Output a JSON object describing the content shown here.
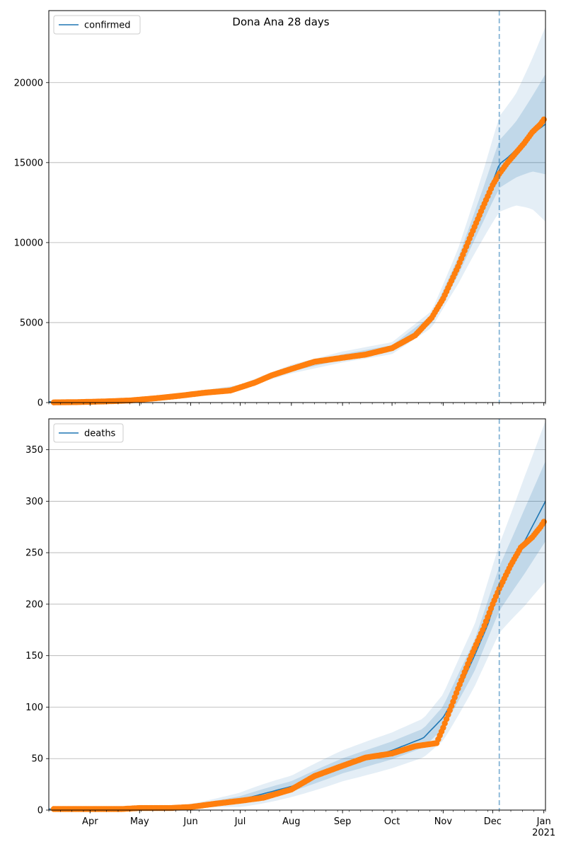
{
  "title": "Dona Ana 28 days",
  "chart_data": [
    {
      "type": "line",
      "panel": "confirmed",
      "legend": {
        "label": "confirmed",
        "placement": "upper-left"
      },
      "colors": {
        "model": "#1f77b4",
        "observed": "#ff7f0e",
        "band": "#1f77b4",
        "grid": "#b0b0b0"
      },
      "grid": "y",
      "xlim": [
        "2020-03-07",
        "2021-01-02"
      ],
      "ylim": [
        0,
        24500
      ],
      "yticks": [
        "0",
        "5000",
        "10000",
        "15000",
        "20000"
      ],
      "forecast_start": "2020-12-05",
      "model_median": {
        "x": [
          "2020-03-07",
          "2020-04-01",
          "2020-05-01",
          "2020-06-01",
          "2020-07-01",
          "2020-07-15",
          "2020-08-01",
          "2020-08-15",
          "2020-09-01",
          "2020-09-15",
          "2020-10-01",
          "2020-10-15",
          "2020-10-25",
          "2020-11-01",
          "2020-11-10",
          "2020-11-20",
          "2020-11-25",
          "2020-12-01",
          "2020-12-05",
          "2020-12-10",
          "2020-12-15",
          "2020-12-20",
          "2020-12-25",
          "2021-01-02"
        ],
        "y": [
          50,
          90,
          200,
          480,
          1000,
          1500,
          2100,
          2550,
          2850,
          3050,
          3400,
          4200,
          5200,
          6500,
          8500,
          11000,
          12300,
          13800,
          14900,
          15300,
          15800,
          16300,
          16800,
          17400
        ]
      },
      "bands": {
        "x": [
          "2020-03-07",
          "2020-05-01",
          "2020-07-01",
          "2020-08-01",
          "2020-09-01",
          "2020-10-01",
          "2020-10-25",
          "2020-11-10",
          "2020-11-25",
          "2020-12-05",
          "2020-12-15",
          "2020-12-25",
          "2021-01-02"
        ],
        "y": [
          50,
          200,
          1000,
          2100,
          2850,
          3400,
          5200,
          8500,
          12300,
          14900,
          15800,
          16800,
          17400
        ],
        "outer_spread": [
          0,
          0.05,
          0.12,
          0.13,
          0.12,
          0.11,
          0.1,
          0.13,
          0.17,
          0.2,
          0.22,
          0.28,
          0.35
        ],
        "inner_spread": [
          0,
          0.025,
          0.06,
          0.065,
          0.06,
          0.055,
          0.05,
          0.065,
          0.085,
          0.1,
          0.11,
          0.14,
          0.18
        ]
      },
      "observed": {
        "x": [
          "2020-03-10",
          "2020-03-25",
          "2020-04-10",
          "2020-04-25",
          "2020-05-10",
          "2020-05-25",
          "2020-06-10",
          "2020-06-25",
          "2020-07-10",
          "2020-07-20",
          "2020-08-01",
          "2020-08-15",
          "2020-09-01",
          "2020-09-15",
          "2020-10-01",
          "2020-10-15",
          "2020-10-25",
          "2020-11-01",
          "2020-11-10",
          "2020-11-18",
          "2020-11-25",
          "2020-12-01",
          "2020-12-05",
          "2020-12-10",
          "2020-12-15",
          "2020-12-20",
          "2020-12-25",
          "2020-12-30",
          "2021-01-01"
        ],
        "y": [
          10,
          30,
          70,
          130,
          260,
          420,
          620,
          750,
          1250,
          1700,
          2100,
          2550,
          2800,
          3000,
          3400,
          4200,
          5300,
          6500,
          8500,
          10500,
          12200,
          13600,
          14300,
          15000,
          15600,
          16200,
          16900,
          17400,
          17700
        ]
      }
    },
    {
      "type": "line",
      "panel": "deaths",
      "legend": {
        "label": "deaths",
        "placement": "upper-left"
      },
      "colors": {
        "model": "#1f77b4",
        "observed": "#ff7f0e",
        "band": "#1f77b4",
        "grid": "#b0b0b0"
      },
      "grid": "y",
      "xlim": [
        "2020-03-07",
        "2021-01-02"
      ],
      "ylim": [
        0,
        380
      ],
      "yticks": [
        "0",
        "50",
        "100",
        "150",
        "200",
        "250",
        "300",
        "350"
      ],
      "forecast_start": "2020-12-05",
      "xtick_labels": [
        {
          "date": "2020-04-01",
          "label": "Apr"
        },
        {
          "date": "2020-05-01",
          "label": "May"
        },
        {
          "date": "2020-06-01",
          "label": "Jun"
        },
        {
          "date": "2020-07-01",
          "label": "Jul"
        },
        {
          "date": "2020-08-01",
          "label": "Aug"
        },
        {
          "date": "2020-09-01",
          "label": "Sep"
        },
        {
          "date": "2020-10-01",
          "label": "Oct"
        },
        {
          "date": "2020-11-01",
          "label": "Nov"
        },
        {
          "date": "2020-12-01",
          "label": "Dec"
        },
        {
          "date": "2021-01-01",
          "label": "Jan"
        }
      ],
      "xtick_year": "2021",
      "model_median": {
        "x": [
          "2020-03-07",
          "2020-05-01",
          "2020-06-01",
          "2020-07-01",
          "2020-08-01",
          "2020-09-01",
          "2020-10-01",
          "2020-10-20",
          "2020-11-01",
          "2020-11-10",
          "2020-11-20",
          "2020-11-28",
          "2020-12-05",
          "2020-12-12",
          "2020-12-20",
          "2021-01-02"
        ],
        "y": [
          1,
          2,
          4,
          10,
          23,
          43,
          58,
          70,
          90,
          115,
          150,
          180,
          215,
          240,
          260,
          300
        ]
      },
      "bands": {
        "x": [
          "2020-03-07",
          "2020-05-01",
          "2020-06-01",
          "2020-07-01",
          "2020-08-01",
          "2020-09-01",
          "2020-10-01",
          "2020-10-20",
          "2020-11-01",
          "2020-11-20",
          "2020-12-05",
          "2020-12-20",
          "2021-01-02"
        ],
        "y": [
          1,
          2,
          4,
          10,
          23,
          43,
          58,
          70,
          90,
          150,
          215,
          260,
          300
        ],
        "outer_spread": [
          0,
          0.2,
          0.5,
          0.7,
          0.45,
          0.35,
          0.3,
          0.27,
          0.25,
          0.2,
          0.2,
          0.24,
          0.26
        ],
        "inner_spread": [
          0,
          0.1,
          0.25,
          0.35,
          0.22,
          0.17,
          0.15,
          0.13,
          0.12,
          0.1,
          0.1,
          0.12,
          0.13
        ]
      },
      "observed": {
        "x": [
          "2020-03-10",
          "2020-04-01",
          "2020-04-20",
          "2020-05-01",
          "2020-05-20",
          "2020-06-01",
          "2020-06-15",
          "2020-07-01",
          "2020-07-15",
          "2020-08-01",
          "2020-08-15",
          "2020-09-01",
          "2020-09-15",
          "2020-10-01",
          "2020-10-15",
          "2020-10-28",
          "2020-11-01",
          "2020-11-10",
          "2020-11-18",
          "2020-11-25",
          "2020-12-01",
          "2020-12-05",
          "2020-12-12",
          "2020-12-18",
          "2020-12-25",
          "2020-12-30",
          "2021-01-01"
        ],
        "y": [
          1,
          1,
          1,
          2,
          2,
          3,
          6,
          9,
          12,
          20,
          33,
          43,
          51,
          55,
          62,
          65,
          80,
          118,
          150,
          175,
          200,
          215,
          238,
          255,
          265,
          275,
          280
        ]
      }
    }
  ]
}
